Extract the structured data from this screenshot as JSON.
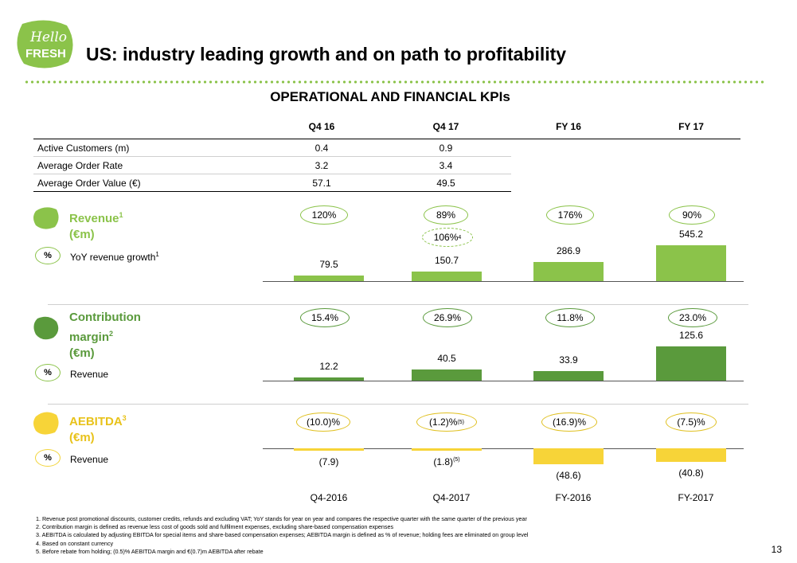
{
  "logo": {
    "line1": "Hello",
    "line2": "FRESH"
  },
  "header": {
    "title": "US: industry leading growth and on path to profitability",
    "subtitle": "OPERATIONAL AND FINANCIAL KPIs"
  },
  "colors": {
    "light_green": "#8bc34a",
    "dark_green": "#5a9a3c",
    "yellow": "#f7d438",
    "oval_border_green": "#8bc34a",
    "oval_border_yellow": "#e0c020"
  },
  "kpi_table": {
    "columns": [
      "Q4 16",
      "Q4 17",
      "FY 16",
      "FY 17"
    ],
    "rows": [
      {
        "label": "Active Customers (m)",
        "values": [
          "0.4",
          "0.9"
        ]
      },
      {
        "label": "Average Order Rate",
        "values": [
          "3.2",
          "3.4"
        ]
      },
      {
        "label": "Average Order Value (€)",
        "values": [
          "57.1",
          "49.5"
        ]
      }
    ]
  },
  "sections": {
    "revenue": {
      "title": "Revenue",
      "title_sup": "1",
      "unit": "(€m)",
      "pct_badge": "%",
      "pct_label": "YoY revenue growth",
      "pct_label_sup": "1",
      "ovals": [
        "120%",
        "89%",
        "176%",
        "90%"
      ],
      "extra_oval": "106%",
      "extra_oval_sup": "4",
      "value_labels": [
        "79.5",
        "150.7",
        "286.9",
        "545.2"
      ]
    },
    "contribution": {
      "title_line1": "Contribution",
      "title_line2": "margin",
      "title_sup": "2",
      "unit": "(€m)",
      "pct_badge": "%",
      "pct_label": "Revenue",
      "ovals": [
        "15.4%",
        "26.9%",
        "11.8%",
        "23.0%"
      ],
      "value_labels": [
        "12.2",
        "40.5",
        "33.9",
        "125.6"
      ]
    },
    "aebitda": {
      "title": "AEBITDA",
      "title_sup": "3",
      "unit": "(€m)",
      "pct_badge": "%",
      "pct_label": "Revenue",
      "ovals": [
        "(10.0)%",
        "(1.2)%",
        "(16.9)%",
        "(7.5)%"
      ],
      "oval_sups": [
        "",
        "(5)",
        "",
        ""
      ],
      "value_labels": [
        "(7.9)",
        "(1.8)",
        "(48.6)",
        "(40.8)"
      ],
      "value_sups": [
        "",
        "(5)",
        "",
        ""
      ]
    }
  },
  "periods": [
    "Q4-2016",
    "Q4-2017",
    "FY-2016",
    "FY-2017"
  ],
  "chart_data": [
    {
      "type": "bar",
      "title": "Revenue (€m)",
      "categories": [
        "Q4-2016",
        "Q4-2017",
        "FY-2016",
        "FY-2017"
      ],
      "values": [
        79.5,
        150.7,
        286.9,
        545.2
      ],
      "annotations": [
        "120%",
        "89%",
        "176%",
        "90%"
      ],
      "annotation_label": "YoY revenue growth"
    },
    {
      "type": "bar",
      "title": "Contribution margin (€m)",
      "categories": [
        "Q4-2016",
        "Q4-2017",
        "FY-2016",
        "FY-2017"
      ],
      "values": [
        12.2,
        40.5,
        33.9,
        125.6
      ],
      "annotations": [
        "15.4%",
        "26.9%",
        "11.8%",
        "23.0%"
      ],
      "annotation_label": "% Revenue"
    },
    {
      "type": "bar",
      "title": "AEBITDA (€m)",
      "categories": [
        "Q4-2016",
        "Q4-2017",
        "FY-2016",
        "FY-2017"
      ],
      "values": [
        -7.9,
        -1.8,
        -48.6,
        -40.8
      ],
      "annotations": [
        "(10.0)%",
        "(1.2)%",
        "(16.9)%",
        "(7.5)%"
      ],
      "annotation_label": "% Revenue"
    }
  ],
  "footnotes": [
    "1. Revenue post promotional discounts, customer credits, refunds and excluding VAT; YoY stands for year on year and compares the respective quarter with the same quarter of the previous year",
    "2. Contribution margin is defined as revenue less cost of goods sold and fulfilment expenses, excluding share-based compensation expenses",
    "3. AEBITDA is calculated by adjusting EBITDA for special items and share-based compensation expenses; AEBITDA margin is defined as % of revenue; holding fees are eliminated on group level",
    "4. Based on constant currency",
    "5. Before rebate from holding; (0.5)% AEBITDA margin and €(0.7)m AEBITDA after rebate"
  ],
  "page_number": "13"
}
